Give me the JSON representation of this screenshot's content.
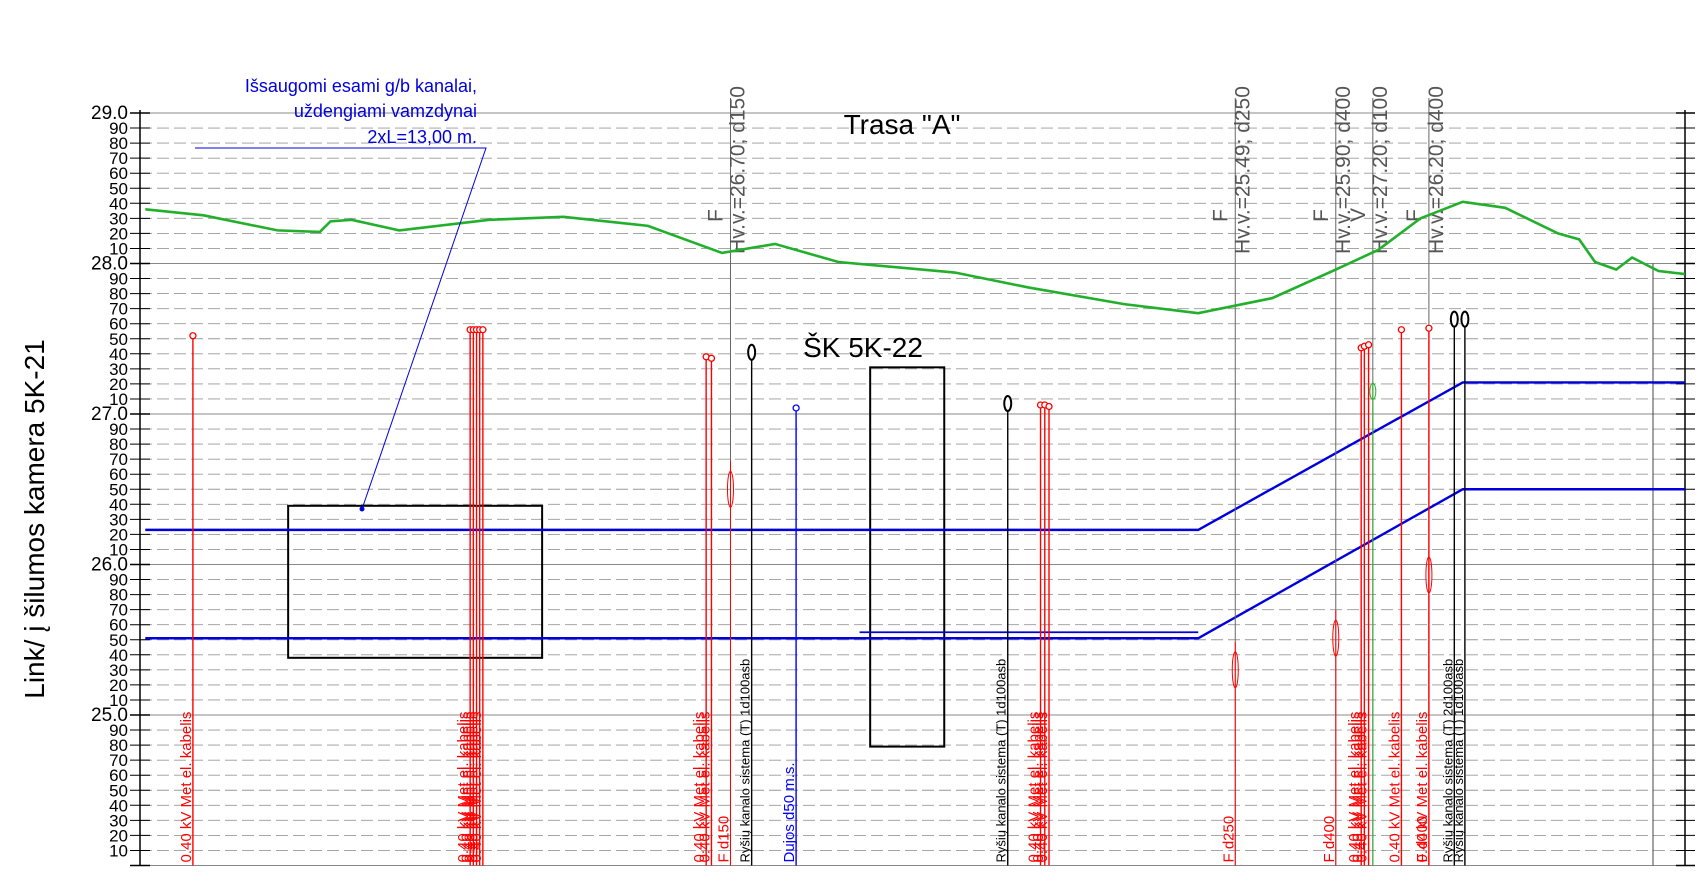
{
  "title": "Trasa \"A\"",
  "side_label": "Link/ į šilumos kamera 5K-21",
  "chamber_label": "ŠK 5K-22",
  "note_lines": [
    "Išsaugomi esami g/b kanalai,",
    "uždengiami vamzdynai",
    "2xL=13,00 m."
  ],
  "colors": {
    "ground": "#22b02c",
    "pipe": "#0000dd",
    "power": "#ff0000",
    "telecom": "#000000",
    "gas": "#0000ff",
    "grid": "#999999"
  },
  "axis": {
    "min": 24.0,
    "max": 29.0,
    "step": 0.1,
    "major_labels": [
      "29.0",
      "28.0",
      "27.0",
      "26.0",
      "25.0"
    ],
    "minor_labels": [
      "90",
      "80",
      "70",
      "60",
      "50",
      "40",
      "30",
      "20",
      "10",
      "00"
    ]
  },
  "chart_data": {
    "type": "line",
    "ground_profile": [
      [
        0.5,
        28.36
      ],
      [
        6,
        28.32
      ],
      [
        13,
        28.22
      ],
      [
        17,
        28.21
      ],
      [
        18,
        28.28
      ],
      [
        20,
        28.29
      ],
      [
        24.5,
        28.22
      ],
      [
        33,
        28.29
      ],
      [
        40,
        28.31
      ],
      [
        48,
        28.25
      ],
      [
        55,
        28.07
      ],
      [
        60,
        28.13
      ],
      [
        66,
        28.01
      ],
      [
        77,
        27.94
      ],
      [
        84,
        27.84
      ],
      [
        93,
        27.73
      ],
      [
        100,
        27.67
      ],
      [
        107,
        27.77
      ],
      [
        113,
        27.96
      ],
      [
        117,
        28.09
      ],
      [
        121,
        28.3
      ],
      [
        125,
        28.41
      ],
      [
        129,
        28.37
      ],
      [
        134,
        28.2
      ],
      [
        136,
        28.16
      ],
      [
        137.5,
        28.01
      ],
      [
        139.5,
        27.96
      ],
      [
        141,
        28.04
      ],
      [
        143.5,
        27.95
      ],
      [
        146,
        27.93
      ]
    ],
    "pipes": [
      [
        [
          0.5,
          26.23
        ],
        [
          100,
          26.23
        ],
        [
          125,
          27.21
        ],
        [
          146,
          27.21
        ]
      ],
      [
        [
          0.5,
          25.51
        ],
        [
          100,
          25.51
        ],
        [
          125,
          26.5
        ],
        [
          146,
          26.5
        ]
      ],
      [
        [
          68,
          25.55
        ],
        [
          100,
          25.55
        ]
      ]
    ],
    "existing_channel": {
      "x": [
        14,
        38
      ],
      "y": [
        25.38,
        26.39
      ]
    },
    "chamber": {
      "x": [
        69,
        76
      ],
      "y": [
        24.79,
        27.31
      ]
    },
    "utilities": [
      {
        "x": 5.0,
        "top": 27.52,
        "label": "0.40 kV Met el. kabelis",
        "kind": "power"
      },
      {
        "x": 31.2,
        "top": 27.56,
        "label": "0.40 kV Met el. kabelis",
        "kind": "power"
      },
      {
        "x": 31.5,
        "top": 27.56,
        "label": "0.40 kV Met el. kabelis",
        "kind": "power"
      },
      {
        "x": 31.8,
        "top": 27.56,
        "label": "0.40 kV Met el. kabelis",
        "kind": "power"
      },
      {
        "x": 32.1,
        "top": 27.56,
        "label": "0.40 kV Met el. kabelis",
        "kind": "power"
      },
      {
        "x": 32.4,
        "top": 27.56,
        "label": "0.40 kV Met el. kabelis",
        "kind": "power"
      },
      {
        "x": 53.5,
        "top": 27.38,
        "label": "0.40 kV Met el. kabelis",
        "kind": "power"
      },
      {
        "x": 54.0,
        "top": 27.37,
        "label": "0.40 kV Met el. kabelis",
        "kind": "power"
      },
      {
        "x": 55.8,
        "top": 26.62,
        "label": "F d150",
        "kind": "heating",
        "sym": "F",
        "hv": "Hv.v.=26.70; d150"
      },
      {
        "x": 57.8,
        "top": 27.41,
        "label": "Ryšių kanalo sistema (T) 1d100asb",
        "kind": "telecom"
      },
      {
        "x": 62.0,
        "top": 27.04,
        "label": "Dujos d50 m.s.",
        "kind": "gas"
      },
      {
        "x": 82.0,
        "top": 27.07,
        "label": "Ryšių kanalo sistema (T) 1d100asb",
        "kind": "telecom"
      },
      {
        "x": 85.1,
        "top": 27.06,
        "label": "0.40 kV Met el. kabelis",
        "kind": "power"
      },
      {
        "x": 85.5,
        "top": 27.06,
        "label": "0.40 kV Met el. kabelis",
        "kind": "power"
      },
      {
        "x": 85.9,
        "top": 27.05,
        "label": "0.40 kV Met el. kabelis",
        "kind": "power"
      },
      {
        "x": 103.5,
        "top": 25.42,
        "label": "F d250",
        "kind": "heating",
        "sym": "F",
        "hv": "Hv.v.=25.49; d250"
      },
      {
        "x": 113.0,
        "top": 25.63,
        "label": "F d400",
        "kind": "heating",
        "sym": "F",
        "hv": "Hv.v.=25.90; d400"
      },
      {
        "x": 115.4,
        "top": 27.44,
        "label": "0.40 kV Met el. kabelis",
        "kind": "power"
      },
      {
        "x": 115.7,
        "top": 27.45,
        "label": "0.40 kV Met el. kabelis",
        "kind": "power"
      },
      {
        "x": 116.1,
        "top": 27.46,
        "label": "0.40 kV Met el. kabelis",
        "kind": "power"
      },
      {
        "x": 116.5,
        "top": 27.15,
        "label": "",
        "kind": "green",
        "sym": "V",
        "hv": "Hv.v.=27.20; d100"
      },
      {
        "x": 119.2,
        "top": 27.56,
        "label": "0.40 kV Met el. kabelis",
        "kind": "power"
      },
      {
        "x": 121.8,
        "top": 26.05,
        "label": "F d400",
        "kind": "heating",
        "sym": "F",
        "hv": "Hv.v.=26.20; d400"
      },
      {
        "x": 121.8,
        "top": 27.57,
        "label": "0.40 kV Met el. kabelis",
        "kind": "power"
      },
      {
        "x": 124.2,
        "top": 27.63,
        "label": "Ryšių kanalo sistema (T) 2d100asb",
        "kind": "telecom"
      },
      {
        "x": 125.2,
        "top": 27.63,
        "label": "Ryšių kanalo sistema (T) 1d100asb",
        "kind": "telecom"
      }
    ]
  }
}
